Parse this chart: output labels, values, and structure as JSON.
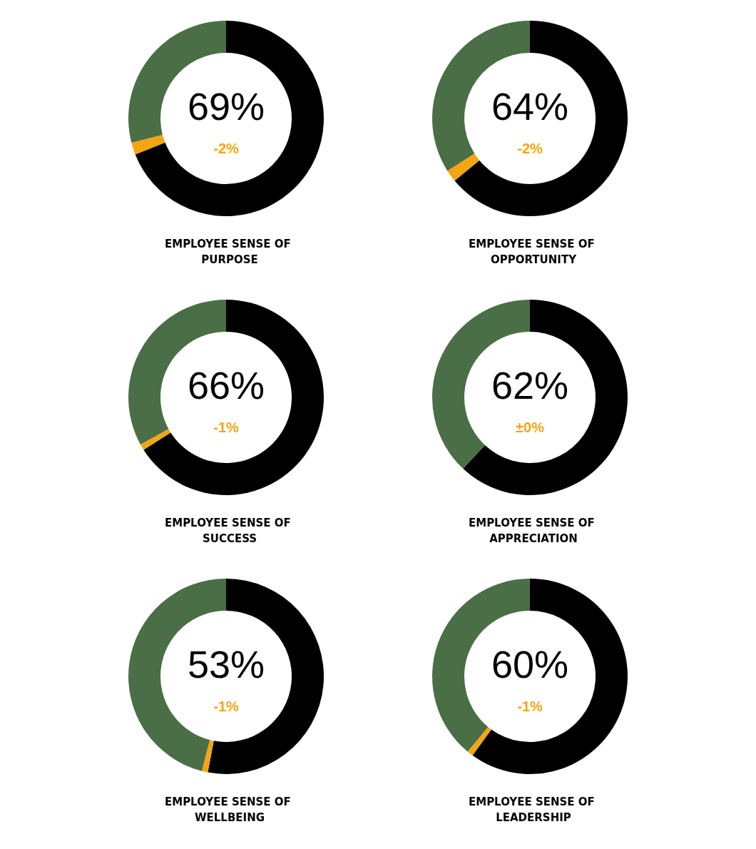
{
  "chart_data": [
    {
      "type": "donut",
      "title": "EMPLOYEE SENSE OF PURPOSE",
      "categories": [
        null,
        null,
        null
      ],
      "values": [
        69,
        2,
        29
      ],
      "colors": [
        "#000000",
        "#f5a512",
        "#4a6e45"
      ],
      "annotations": [
        "69%",
        "-2%"
      ]
    },
    {
      "type": "donut",
      "title": "EMPLOYEE SENSE OF OPPORTUNITY",
      "categories": [
        null,
        null,
        null
      ],
      "values": [
        64,
        2,
        34
      ],
      "colors": [
        "#000000",
        "#f5a512",
        "#4a6e45"
      ],
      "annotations": [
        "64%",
        "-2%"
      ]
    },
    {
      "type": "donut",
      "title": "EMPLOYEE SENSE OF SUCCESS",
      "categories": [
        null,
        null,
        null
      ],
      "values": [
        66,
        1,
        33
      ],
      "colors": [
        "#000000",
        "#f5a512",
        "#4a6e45"
      ],
      "annotations": [
        "66%",
        "-1%"
      ]
    },
    {
      "type": "donut",
      "title": "EMPLOYEE SENSE OF APPRECIATION",
      "categories": [
        null,
        null,
        null
      ],
      "values": [
        62,
        0,
        38
      ],
      "colors": [
        "#000000",
        "#f5a512",
        "#4a6e45"
      ],
      "annotations": [
        "62%",
        "±0%"
      ]
    },
    {
      "type": "donut",
      "title": "EMPLOYEE SENSE OF WELLBEING",
      "categories": [
        null,
        null,
        null
      ],
      "values": [
        53,
        1,
        46
      ],
      "colors": [
        "#000000",
        "#f5a512",
        "#4a6e45"
      ],
      "annotations": [
        "53%",
        "-1%"
      ]
    },
    {
      "type": "donut",
      "title": "EMPLOYEE SENSE OF LEADERSHIP",
      "categories": [
        null,
        null,
        null
      ],
      "values": [
        60,
        1,
        39
      ],
      "colors": [
        "#000000",
        "#f5a512",
        "#4a6e45"
      ],
      "annotations": [
        "60%",
        "-1%"
      ]
    }
  ]
}
